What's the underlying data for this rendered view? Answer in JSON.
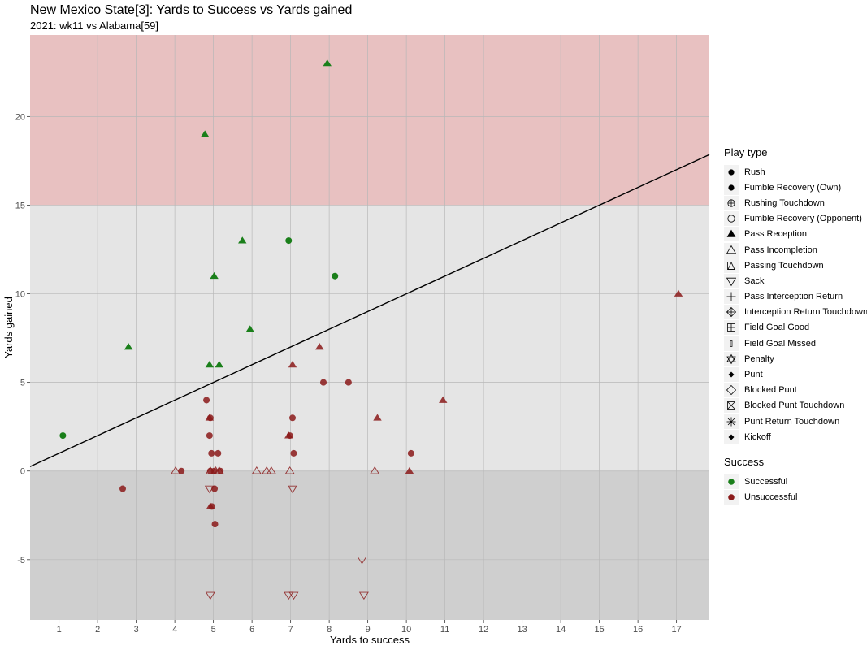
{
  "chart_data": {
    "type": "scatter",
    "title": "New Mexico State[3]: Yards to Success vs Yards gained",
    "subtitle": "2021: wk11 vs Alabama[59]",
    "xlabel": "Yards to success",
    "ylabel": "Yards gained",
    "xlim": [
      0.25,
      17.85
    ],
    "ylim": [
      -8.4,
      24.6
    ],
    "x_ticks": [
      1,
      2,
      3,
      4,
      5,
      6,
      7,
      8,
      9,
      10,
      11,
      12,
      13,
      14,
      15,
      16,
      17
    ],
    "y_ticks": [
      -5,
      0,
      5,
      10,
      15,
      20
    ],
    "grid": true,
    "bands": [
      {
        "from": 15,
        "to": 24.6,
        "color": "#e8c1c1"
      },
      {
        "from": 0,
        "to": 15,
        "color": "#e5e5e5"
      },
      {
        "from": -8.4,
        "to": 0,
        "color": "#cfcfcf"
      }
    ],
    "reference_line": {
      "type": "y=x",
      "color": "#000000"
    },
    "colors": {
      "Successful": "#1a7f1a",
      "Unsuccessful": "#8b1a1a"
    },
    "points": [
      {
        "x": 7.95,
        "y": 23,
        "shape": "Pass Reception",
        "success": "Successful"
      },
      {
        "x": 4.78,
        "y": 19,
        "shape": "Pass Reception",
        "success": "Successful"
      },
      {
        "x": 5.75,
        "y": 13,
        "shape": "Pass Reception",
        "success": "Successful"
      },
      {
        "x": 6.95,
        "y": 13,
        "shape": "Rush",
        "success": "Successful"
      },
      {
        "x": 5.02,
        "y": 11,
        "shape": "Pass Reception",
        "success": "Successful"
      },
      {
        "x": 8.15,
        "y": 11,
        "shape": "Rush",
        "success": "Successful"
      },
      {
        "x": 5.95,
        "y": 8,
        "shape": "Pass Reception",
        "success": "Successful"
      },
      {
        "x": 2.8,
        "y": 7,
        "shape": "Pass Reception",
        "success": "Successful"
      },
      {
        "x": 4.9,
        "y": 6,
        "shape": "Pass Reception",
        "success": "Successful"
      },
      {
        "x": 5.15,
        "y": 6,
        "shape": "Pass Reception",
        "success": "Successful"
      },
      {
        "x": 1.1,
        "y": 2,
        "shape": "Rush",
        "success": "Successful"
      },
      {
        "x": 17.05,
        "y": 10,
        "shape": "Pass Reception",
        "success": "Unsuccessful"
      },
      {
        "x": 7.75,
        "y": 7,
        "shape": "Pass Reception",
        "success": "Unsuccessful"
      },
      {
        "x": 7.05,
        "y": 6,
        "shape": "Pass Reception",
        "success": "Unsuccessful"
      },
      {
        "x": 7.85,
        "y": 5,
        "shape": "Rush",
        "success": "Unsuccessful"
      },
      {
        "x": 8.5,
        "y": 5,
        "shape": "Rush",
        "success": "Unsuccessful"
      },
      {
        "x": 10.95,
        "y": 4,
        "shape": "Pass Reception",
        "success": "Unsuccessful"
      },
      {
        "x": 4.82,
        "y": 4,
        "shape": "Rush",
        "success": "Unsuccessful"
      },
      {
        "x": 4.9,
        "y": 3,
        "shape": "Pass Reception",
        "success": "Unsuccessful"
      },
      {
        "x": 4.92,
        "y": 3,
        "shape": "Rush",
        "success": "Unsuccessful"
      },
      {
        "x": 7.05,
        "y": 3,
        "shape": "Rush",
        "success": "Unsuccessful"
      },
      {
        "x": 9.25,
        "y": 3,
        "shape": "Pass Reception",
        "success": "Unsuccessful"
      },
      {
        "x": 4.9,
        "y": 2,
        "shape": "Rush",
        "success": "Unsuccessful"
      },
      {
        "x": 6.95,
        "y": 2,
        "shape": "Pass Reception",
        "success": "Unsuccessful"
      },
      {
        "x": 6.98,
        "y": 2,
        "shape": "Rush",
        "success": "Unsuccessful"
      },
      {
        "x": 4.95,
        "y": 1,
        "shape": "Rush",
        "success": "Unsuccessful"
      },
      {
        "x": 5.12,
        "y": 1,
        "shape": "Rush",
        "success": "Unsuccessful"
      },
      {
        "x": 7.08,
        "y": 1,
        "shape": "Rush",
        "success": "Unsuccessful"
      },
      {
        "x": 10.12,
        "y": 1,
        "shape": "Rush",
        "success": "Unsuccessful"
      },
      {
        "x": 4.17,
        "y": 0,
        "shape": "Rush",
        "success": "Unsuccessful"
      },
      {
        "x": 4.92,
        "y": 0,
        "shape": "Rush",
        "success": "Unsuccessful"
      },
      {
        "x": 5.02,
        "y": 0,
        "shape": "Rush",
        "success": "Unsuccessful"
      },
      {
        "x": 5.18,
        "y": 0,
        "shape": "Rush",
        "success": "Unsuccessful"
      },
      {
        "x": 10.08,
        "y": 0,
        "shape": "Pass Reception",
        "success": "Unsuccessful"
      },
      {
        "x": 4.02,
        "y": 0,
        "shape": "Pass Incompletion",
        "success": "Unsuccessful"
      },
      {
        "x": 4.92,
        "y": 0,
        "shape": "Pass Incompletion",
        "success": "Unsuccessful"
      },
      {
        "x": 5.06,
        "y": 0,
        "shape": "Pass Incompletion",
        "success": "Unsuccessful"
      },
      {
        "x": 5.15,
        "y": 0,
        "shape": "Pass Incompletion",
        "success": "Unsuccessful"
      },
      {
        "x": 6.12,
        "y": 0,
        "shape": "Pass Incompletion",
        "success": "Unsuccessful"
      },
      {
        "x": 6.38,
        "y": 0,
        "shape": "Pass Incompletion",
        "success": "Unsuccessful"
      },
      {
        "x": 6.5,
        "y": 0,
        "shape": "Pass Incompletion",
        "success": "Unsuccessful"
      },
      {
        "x": 6.98,
        "y": 0,
        "shape": "Pass Incompletion",
        "success": "Unsuccessful"
      },
      {
        "x": 9.18,
        "y": 0,
        "shape": "Pass Incompletion",
        "success": "Unsuccessful"
      },
      {
        "x": 2.65,
        "y": -1,
        "shape": "Rush",
        "success": "Unsuccessful"
      },
      {
        "x": 5.03,
        "y": -1,
        "shape": "Rush",
        "success": "Unsuccessful"
      },
      {
        "x": 4.9,
        "y": -1,
        "shape": "Sack",
        "success": "Unsuccessful"
      },
      {
        "x": 7.05,
        "y": -1,
        "shape": "Sack",
        "success": "Unsuccessful"
      },
      {
        "x": 4.92,
        "y": -2,
        "shape": "Pass Reception",
        "success": "Unsuccessful"
      },
      {
        "x": 4.96,
        "y": -2,
        "shape": "Rush",
        "success": "Unsuccessful"
      },
      {
        "x": 5.04,
        "y": -3,
        "shape": "Rush",
        "success": "Unsuccessful"
      },
      {
        "x": 8.85,
        "y": -5,
        "shape": "Sack",
        "success": "Unsuccessful"
      },
      {
        "x": 4.92,
        "y": -7,
        "shape": "Sack",
        "success": "Unsuccessful"
      },
      {
        "x": 6.95,
        "y": -7,
        "shape": "Sack",
        "success": "Unsuccessful"
      },
      {
        "x": 7.08,
        "y": -7,
        "shape": "Sack",
        "success": "Unsuccessful"
      },
      {
        "x": 8.9,
        "y": -7,
        "shape": "Sack",
        "success": "Unsuccessful"
      }
    ],
    "legend_play_type": {
      "title": "Play type",
      "entries": [
        {
          "label": "Rush",
          "glyph": "circle-filled"
        },
        {
          "label": "Fumble Recovery (Own)",
          "glyph": "circle-filled"
        },
        {
          "label": "Rushing Touchdown",
          "glyph": "circle-plus"
        },
        {
          "label": "Fumble Recovery (Opponent)",
          "glyph": "circle-open"
        },
        {
          "label": "Pass Reception",
          "glyph": "triangle-filled"
        },
        {
          "label": "Pass Incompletion",
          "glyph": "triangle-open"
        },
        {
          "label": "Passing Touchdown",
          "glyph": "square-triangle"
        },
        {
          "label": "Sack",
          "glyph": "triangle-down-open"
        },
        {
          "label": "Pass Interception Return",
          "glyph": "plus"
        },
        {
          "label": "Interception Return Touchdown",
          "glyph": "diamond-plus"
        },
        {
          "label": "Field Goal Good",
          "glyph": "square-plus"
        },
        {
          "label": "Field Goal Missed",
          "glyph": "small-rect"
        },
        {
          "label": "Penalty",
          "glyph": "star-of-david"
        },
        {
          "label": "Punt",
          "glyph": "diamond-filled-small"
        },
        {
          "label": "Blocked Punt",
          "glyph": "diamond-open"
        },
        {
          "label": "Blocked Punt Touchdown",
          "glyph": "square-x"
        },
        {
          "label": "Punt Return Touchdown",
          "glyph": "asterisk"
        },
        {
          "label": "Kickoff",
          "glyph": "diamond-filled-small"
        }
      ]
    },
    "legend_success": {
      "title": "Success",
      "entries": [
        {
          "label": "Successful",
          "color": "#1a7f1a"
        },
        {
          "label": "Unsuccessful",
          "color": "#8b1a1a"
        }
      ]
    }
  }
}
